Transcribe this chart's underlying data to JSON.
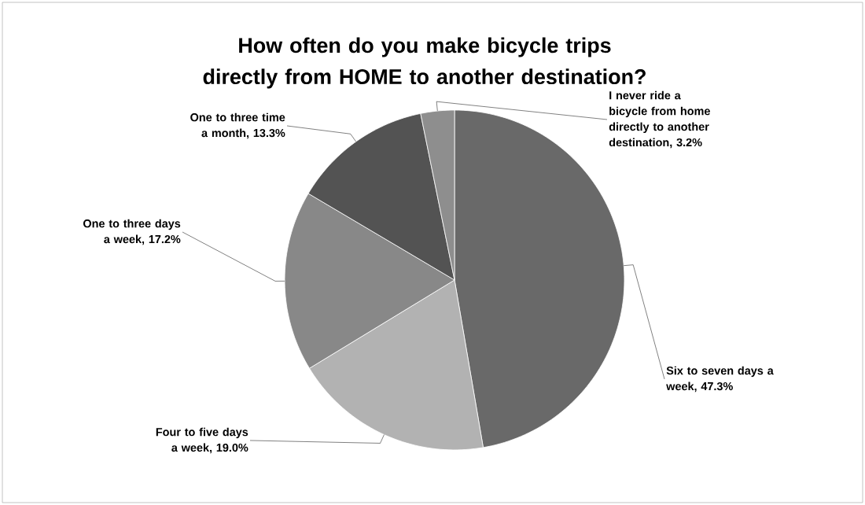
{
  "chart_data": {
    "type": "pie",
    "title": "How often do you make bicycle trips directly from HOME to another destination?",
    "categories": [
      "Six to seven days a week, 47.3%",
      "Four to five days a week, 19.0%",
      "One to three days a week, 17.2%",
      "One to three time a month, 13.3%",
      "I never ride a bicycle from home directly to another destination, 3.2%"
    ],
    "values": [
      47.3,
      19.0,
      17.2,
      13.3,
      3.2
    ],
    "colors": [
      "#696969",
      "#b2b2b2",
      "#888888",
      "#535353",
      "#8e8e8e"
    ]
  }
}
